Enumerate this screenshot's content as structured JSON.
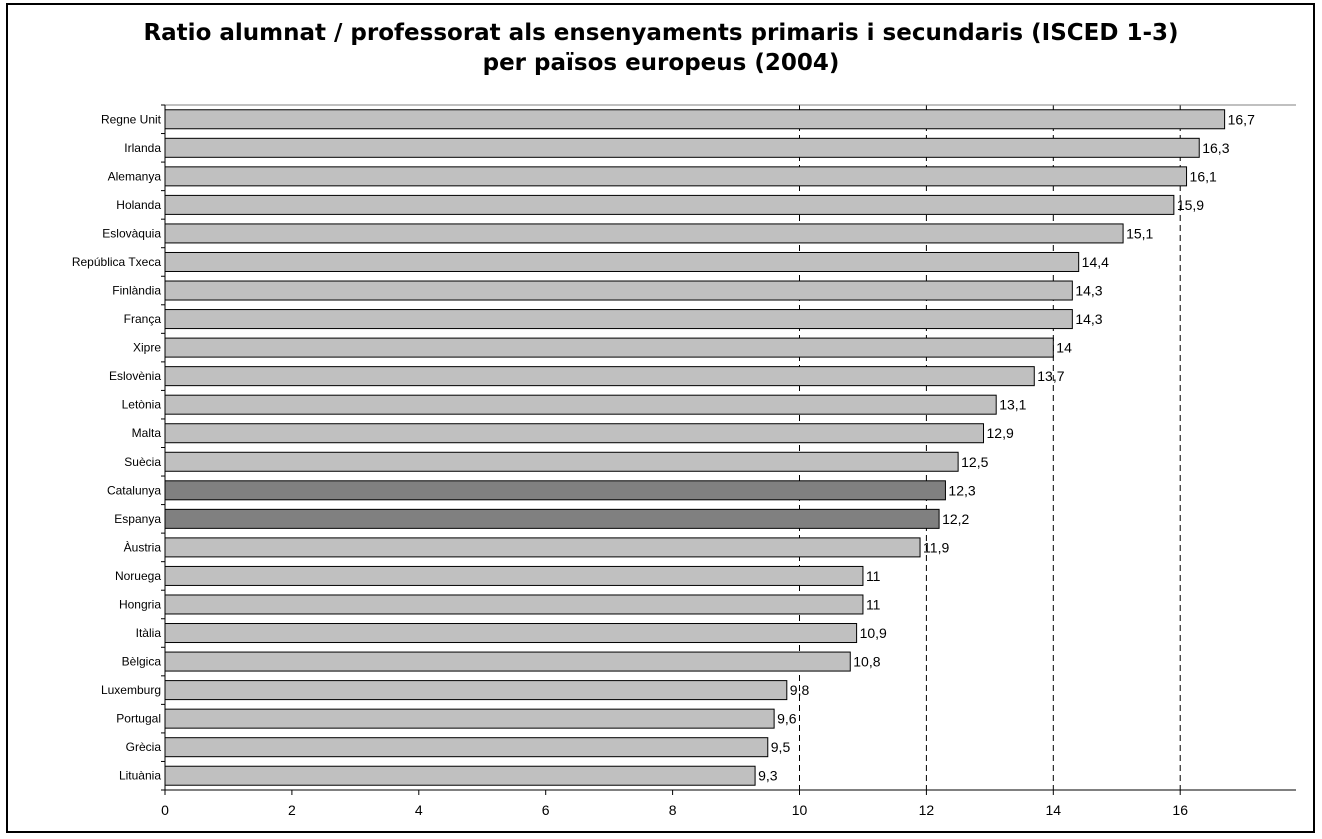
{
  "chart_data": {
    "type": "bar",
    "orientation": "horizontal",
    "title": "Ratio alumnat / professorat als ensenyaments primaris i secundaris (ISCED 1-3)",
    "subtitle": "per països europeus (2004)",
    "xlabel": "",
    "ylabel": "",
    "xlim": [
      0,
      17.8
    ],
    "xticks": [
      0,
      2,
      4,
      6,
      8,
      10,
      12,
      14,
      16
    ],
    "grid": "vertical dashed at 10, 12, 14, 16",
    "legend": "none",
    "colors": {
      "default": "#c0c0c0",
      "highlight": "#808080",
      "border": "#000000"
    },
    "categories": [
      "Regne Unit",
      "Irlanda",
      "Alemanya",
      "Holanda",
      "Eslovàquia",
      "República Txeca",
      "Finlàndia",
      "França",
      "Xipre",
      "Eslovènia",
      "Letònia",
      "Malta",
      "Suècia",
      "Catalunya",
      "Espanya",
      "Àustria",
      "Noruega",
      "Hongria",
      "Itàlia",
      "Bèlgica",
      "Luxemburg",
      "Portugal",
      "Grècia",
      "Lituània"
    ],
    "values": [
      16.7,
      16.3,
      16.1,
      15.9,
      15.1,
      14.4,
      14.3,
      14.3,
      14.0,
      13.7,
      13.1,
      12.9,
      12.5,
      12.3,
      12.2,
      11.9,
      11.0,
      11.0,
      10.9,
      10.8,
      9.8,
      9.6,
      9.5,
      9.3
    ],
    "value_labels": [
      "16,7",
      "16,3",
      "16,1",
      "15,9",
      "15,1",
      "14,4",
      "14,3",
      "14,3",
      "14",
      "13,7",
      "13,1",
      "12,9",
      "12,5",
      "12,3",
      "12,2",
      "11,9",
      "11",
      "11",
      "10,9",
      "10,8",
      "9,8",
      "9,6",
      "9,5",
      "9,3"
    ],
    "highlighted": [
      "Catalunya",
      "Espanya"
    ]
  }
}
